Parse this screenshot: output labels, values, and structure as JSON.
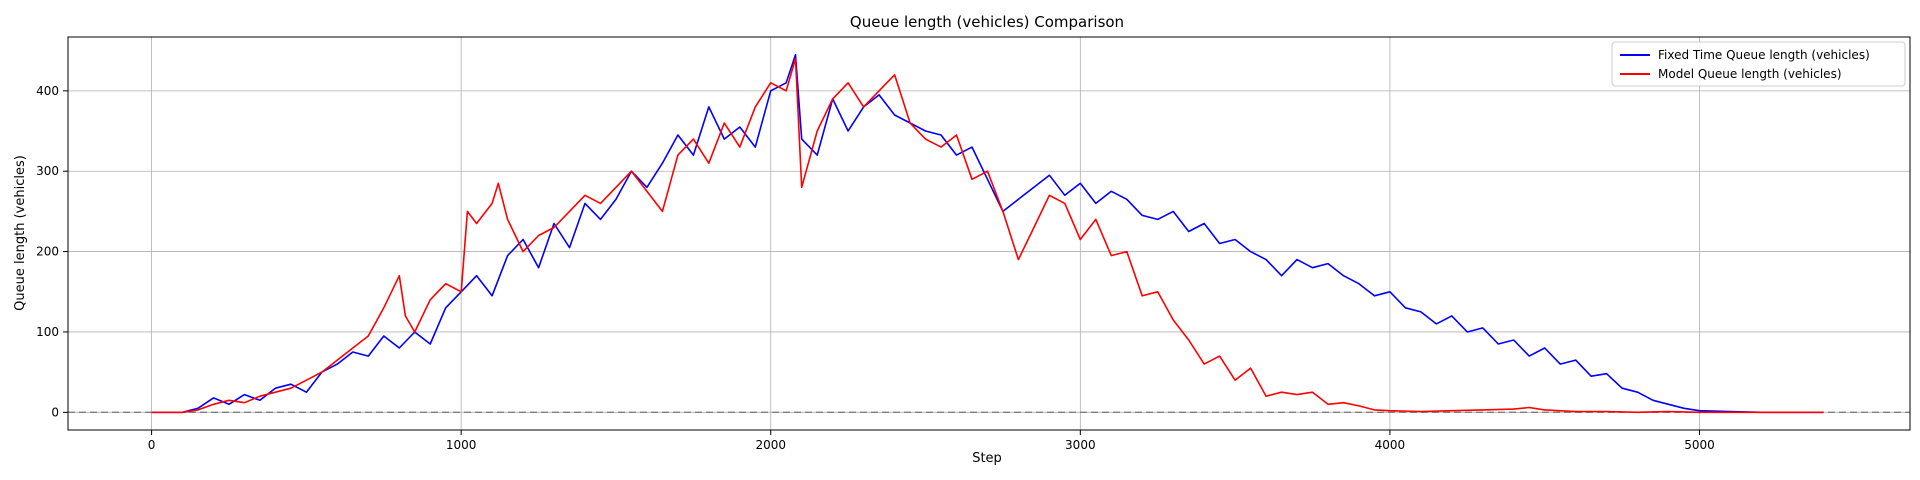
{
  "chart_data": {
    "type": "line",
    "title": "Queue length (vehicles) Comparison",
    "xlabel": "Step",
    "ylabel": "Queue length (vehicles)",
    "xlim": [
      -270,
      5680
    ],
    "ylim": [
      -22,
      467
    ],
    "xticks": [
      0,
      1000,
      2000,
      3000,
      4000,
      5000
    ],
    "yticks": [
      0,
      100,
      200,
      300,
      400
    ],
    "grid": true,
    "legend_position": "top-right",
    "reference_line": {
      "y": 0,
      "style": "dashed",
      "color": "#808080"
    },
    "series": [
      {
        "name": "Fixed Time Queue length (vehicles)",
        "color": "#0000ff",
        "x": [
          0,
          100,
          150,
          200,
          250,
          300,
          350,
          400,
          450,
          500,
          550,
          600,
          650,
          700,
          750,
          800,
          850,
          900,
          950,
          1000,
          1050,
          1100,
          1150,
          1200,
          1250,
          1300,
          1350,
          1400,
          1450,
          1500,
          1550,
          1600,
          1650,
          1700,
          1750,
          1800,
          1850,
          1900,
          1950,
          2000,
          2050,
          2080,
          2100,
          2150,
          2200,
          2250,
          2300,
          2350,
          2400,
          2450,
          2500,
          2550,
          2600,
          2650,
          2700,
          2750,
          2800,
          2850,
          2900,
          2950,
          3000,
          3050,
          3100,
          3150,
          3200,
          3250,
          3300,
          3350,
          3400,
          3450,
          3500,
          3550,
          3600,
          3650,
          3700,
          3750,
          3800,
          3850,
          3900,
          3950,
          4000,
          4050,
          4100,
          4150,
          4200,
          4250,
          4300,
          4350,
          4400,
          4450,
          4500,
          4550,
          4600,
          4650,
          4700,
          4750,
          4800,
          4850,
          4900,
          4950,
          5000,
          5100,
          5200,
          5300,
          5400
        ],
        "y": [
          0,
          0,
          5,
          18,
          10,
          22,
          15,
          30,
          35,
          25,
          50,
          60,
          75,
          70,
          95,
          80,
          100,
          85,
          130,
          150,
          170,
          145,
          195,
          215,
          180,
          235,
          205,
          260,
          240,
          265,
          300,
          280,
          310,
          345,
          320,
          380,
          340,
          355,
          330,
          400,
          410,
          445,
          340,
          320,
          390,
          350,
          380,
          395,
          370,
          360,
          350,
          345,
          320,
          330,
          290,
          250,
          265,
          280,
          295,
          270,
          285,
          260,
          275,
          265,
          245,
          240,
          250,
          225,
          235,
          210,
          215,
          200,
          190,
          170,
          190,
          180,
          185,
          170,
          160,
          145,
          150,
          130,
          125,
          110,
          120,
          100,
          105,
          85,
          90,
          70,
          80,
          60,
          65,
          45,
          48,
          30,
          25,
          15,
          10,
          5,
          2,
          1,
          0,
          0,
          0
        ]
      },
      {
        "name": "Model Queue length (vehicles)",
        "color": "#ff0000",
        "x": [
          0,
          100,
          150,
          200,
          250,
          300,
          350,
          400,
          450,
          500,
          550,
          600,
          650,
          700,
          750,
          800,
          820,
          850,
          900,
          950,
          1000,
          1020,
          1050,
          1100,
          1120,
          1150,
          1200,
          1250,
          1300,
          1350,
          1400,
          1450,
          1500,
          1550,
          1600,
          1650,
          1700,
          1750,
          1800,
          1850,
          1900,
          1950,
          2000,
          2050,
          2080,
          2100,
          2150,
          2200,
          2250,
          2300,
          2350,
          2400,
          2450,
          2500,
          2550,
          2600,
          2650,
          2700,
          2750,
          2800,
          2850,
          2900,
          2950,
          3000,
          3050,
          3100,
          3150,
          3200,
          3250,
          3300,
          3350,
          3400,
          3450,
          3500,
          3550,
          3600,
          3650,
          3700,
          3750,
          3800,
          3850,
          3900,
          3950,
          4000,
          4100,
          4200,
          4300,
          4400,
          4450,
          4500,
          4600,
          4700,
          4800,
          4900,
          5000,
          5100,
          5200,
          5300,
          5400
        ],
        "y": [
          0,
          0,
          3,
          10,
          15,
          12,
          20,
          25,
          30,
          40,
          50,
          65,
          80,
          95,
          130,
          170,
          120,
          100,
          140,
          160,
          150,
          250,
          235,
          260,
          285,
          240,
          200,
          220,
          230,
          250,
          270,
          260,
          280,
          300,
          275,
          250,
          320,
          340,
          310,
          360,
          330,
          380,
          410,
          400,
          440,
          280,
          350,
          390,
          410,
          380,
          400,
          420,
          360,
          340,
          330,
          345,
          290,
          300,
          250,
          190,
          230,
          270,
          260,
          215,
          240,
          195,
          200,
          145,
          150,
          115,
          90,
          60,
          70,
          40,
          55,
          20,
          25,
          22,
          25,
          10,
          12,
          8,
          3,
          2,
          1,
          2,
          3,
          4,
          6,
          3,
          1,
          1,
          0,
          1,
          0,
          0,
          0,
          0,
          0
        ]
      }
    ]
  }
}
